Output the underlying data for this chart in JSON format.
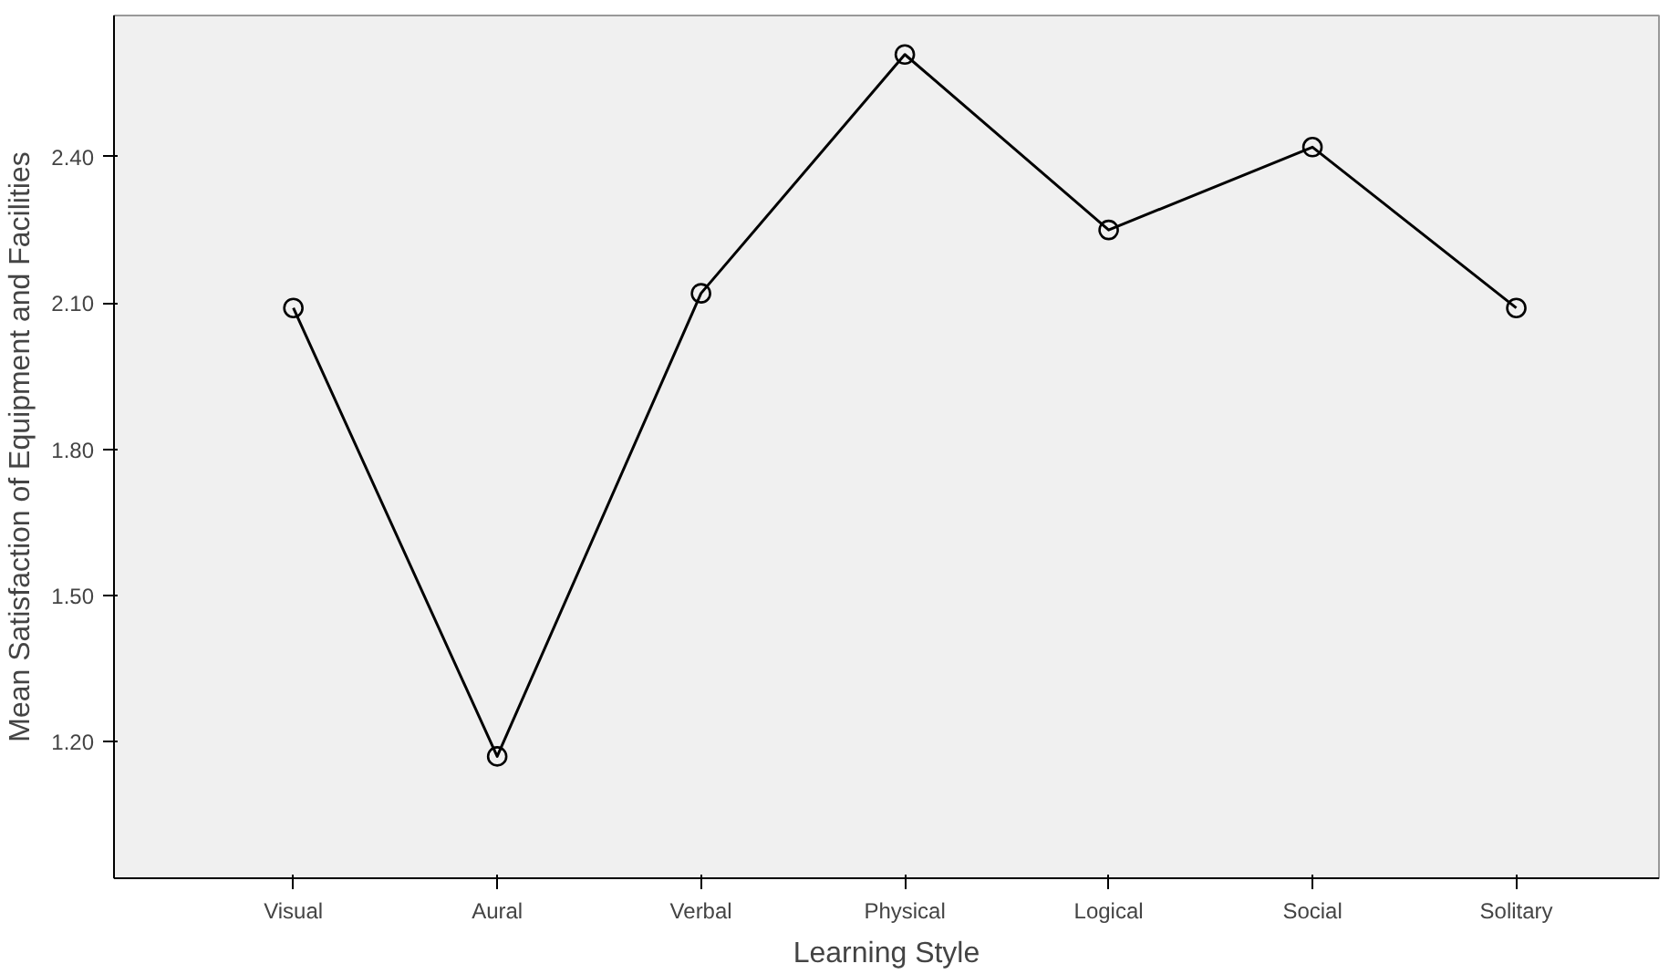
{
  "chart_data": {
    "type": "line",
    "xlabel": "Learning Style",
    "ylabel": "Mean Satisfaction of Equipment and Facilities",
    "categories": [
      "Visual",
      "Aural",
      "Verbal",
      "Physical",
      "Logical",
      "Social",
      "Solitary"
    ],
    "series": [
      {
        "color": "#000000",
        "values": [
          2.09,
          1.17,
          2.12,
          2.61,
          2.25,
          2.42,
          2.09
        ]
      }
    ],
    "ylim": [
      0.92,
      2.69
    ],
    "yticks": [
      {
        "value": 1.2,
        "label": "1.20"
      },
      {
        "value": 1.5,
        "label": "1.50"
      },
      {
        "value": 1.8,
        "label": "1.80"
      },
      {
        "value": 2.1,
        "label": "2.10"
      },
      {
        "value": 2.4,
        "label": "2.40"
      }
    ],
    "grid": false,
    "marker": "circle",
    "line_style": "solid"
  }
}
